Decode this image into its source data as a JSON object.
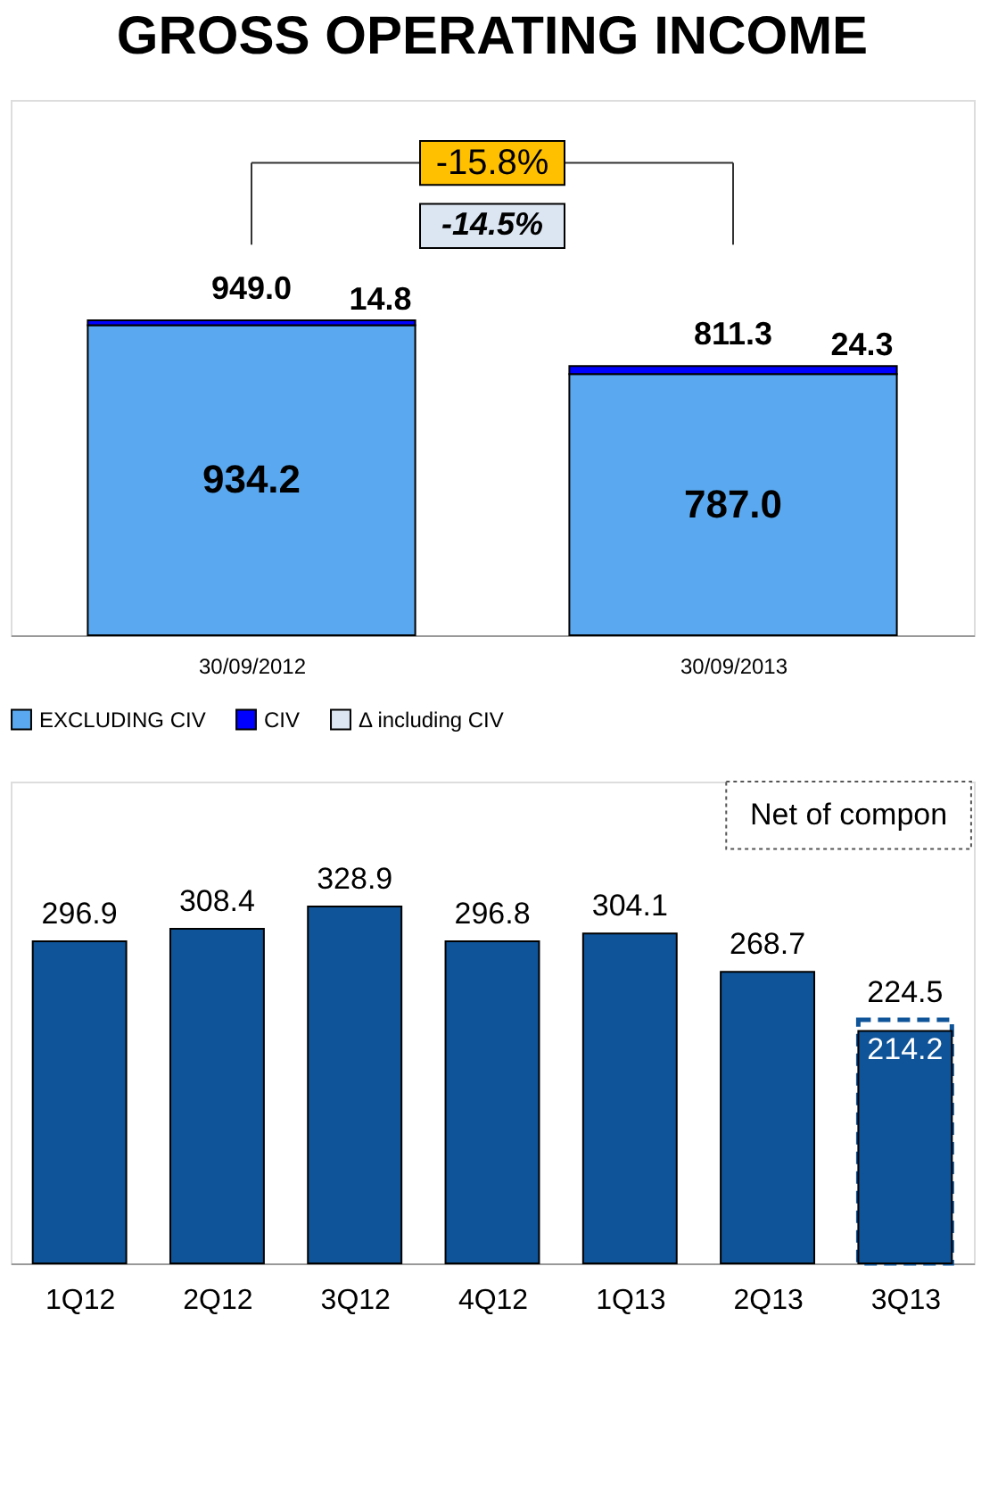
{
  "chart_data": [
    {
      "type": "bar",
      "title": "GROSS OPERATING INCOME",
      "categories": [
        "30/09/2012",
        "30/09/2013"
      ],
      "stacked": true,
      "legend": "bottom",
      "series": [
        {
          "name": "EXCLUDING CIV",
          "color": "#5aa9f0",
          "values": [
            934.2,
            787.0
          ],
          "value_labels": [
            "934.2",
            "787.0"
          ]
        },
        {
          "name": "CIV",
          "color": "#0000ff",
          "values": [
            14.8,
            24.3
          ],
          "value_labels": [
            "14.8",
            "24.3"
          ]
        },
        {
          "name": "Δ including CIV",
          "color": "#dce6f2",
          "values": [
            null,
            null
          ]
        }
      ],
      "totals": [
        "949.0",
        "811.3"
      ],
      "annotations": [
        "-15.8%",
        "-14.5%"
      ]
    },
    {
      "type": "bar",
      "categories": [
        "1Q12",
        "2Q12",
        "3Q12",
        "4Q12",
        "1Q13",
        "2Q13",
        "3Q13"
      ],
      "data_labels": true,
      "series": [
        {
          "color": "#0f5499",
          "values": [
            296.9,
            308.4,
            328.9,
            296.8,
            304.1,
            268.7,
            214.2
          ]
        },
        {
          "color": "#0f5499",
          "line_style": "dashed",
          "values": [
            null,
            null,
            null,
            null,
            null,
            null,
            224.5
          ]
        }
      ],
      "annotations": [
        "Net of compon"
      ]
    }
  ]
}
